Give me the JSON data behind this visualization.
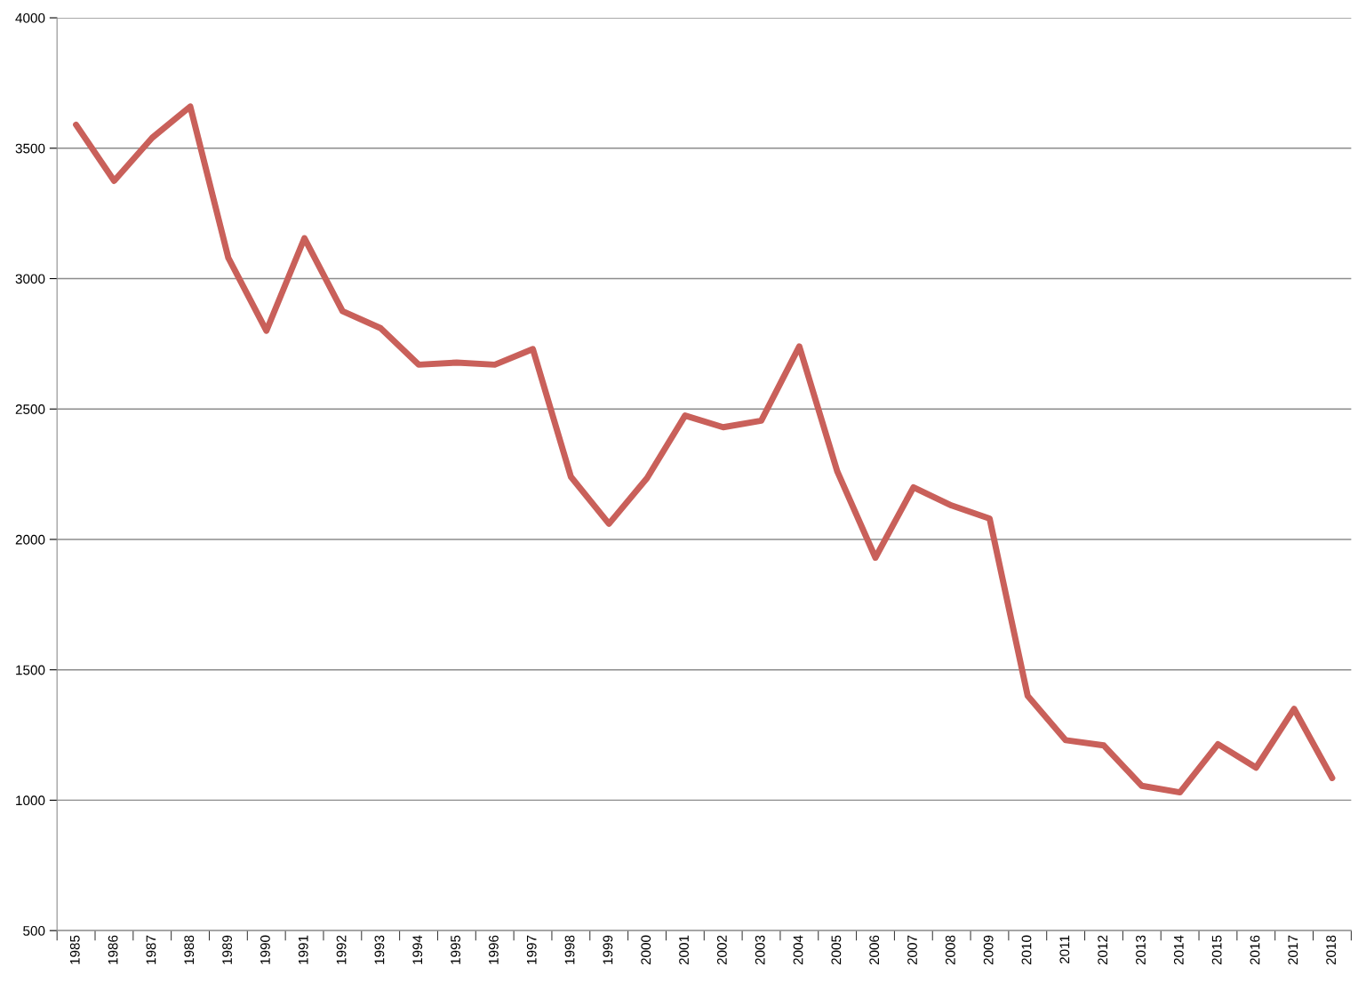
{
  "chart_data": {
    "type": "line",
    "categories": [
      "1985",
      "1986",
      "1987",
      "1988",
      "1989",
      "1990",
      "1991",
      "1992",
      "1993",
      "1994",
      "1995",
      "1996",
      "1997",
      "1998",
      "1999",
      "2000",
      "2001",
      "2002",
      "2003",
      "2004",
      "2005",
      "2006",
      "2007",
      "2008",
      "2009",
      "2010",
      "2011",
      "2012",
      "2013",
      "2014",
      "2015",
      "2016",
      "2017",
      "2018"
    ],
    "series": [
      {
        "color": "#c9605a",
        "values": [
          3590,
          3375,
          3540,
          3660,
          3080,
          2800,
          3155,
          2875,
          2810,
          2670,
          2678,
          2670,
          2730,
          2240,
          2060,
          2235,
          2475,
          2430,
          2455,
          2740,
          2260,
          1930,
          2200,
          2130,
          2080,
          1400,
          1230,
          1210,
          1055,
          1030,
          1215,
          1125,
          1350,
          1085
        ]
      }
    ],
    "ylim": [
      500,
      4000
    ],
    "yticks": [
      500,
      1000,
      1500,
      2000,
      2500,
      3000,
      3500,
      4000
    ],
    "grid": "y",
    "legend": false,
    "marker": "none",
    "line_style": "solid"
  }
}
